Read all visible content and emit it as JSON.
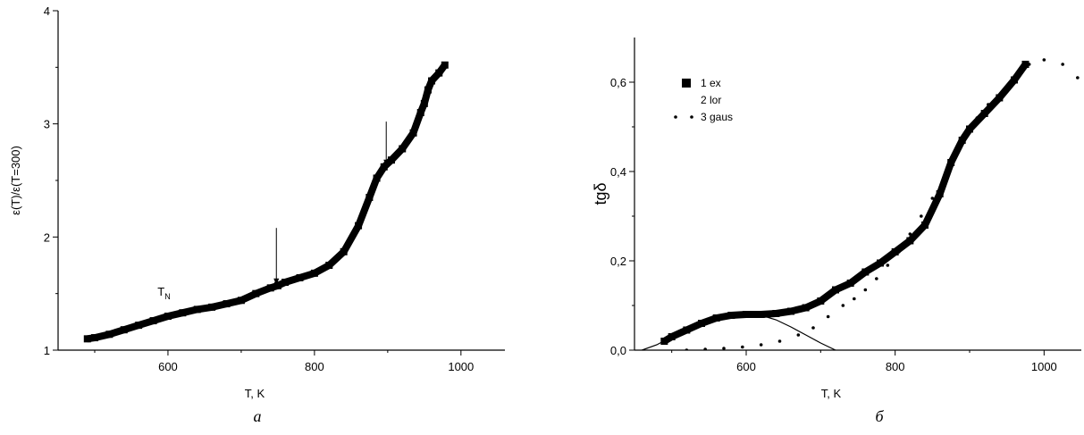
{
  "chart_data": [
    {
      "type": "scatter",
      "panel_label": "а",
      "xlabel": "T, K",
      "ylabel": "ε(T)/ε(T=300)",
      "xlim": [
        450,
        1060
      ],
      "ylim": [
        1,
        4
      ],
      "xticks": [
        600,
        800,
        1000
      ],
      "yticks": [
        1,
        2,
        3,
        4
      ],
      "x_tick_labels": [
        "600",
        "800",
        "1000"
      ],
      "y_tick_labels": [
        "1",
        "2",
        "3",
        "4"
      ],
      "series": [
        {
          "marker": "square-dense",
          "points": [
            [
              490,
              1.1
            ],
            [
              500,
              1.11
            ],
            [
              520,
              1.14
            ],
            [
              540,
              1.18
            ],
            [
              560,
              1.22
            ],
            [
              580,
              1.26
            ],
            [
              600,
              1.3
            ],
            [
              620,
              1.33
            ],
            [
              640,
              1.36
            ],
            [
              660,
              1.38
            ],
            [
              680,
              1.41
            ],
            [
              700,
              1.44
            ],
            [
              720,
              1.5
            ],
            [
              740,
              1.55
            ],
            [
              750,
              1.57
            ],
            [
              760,
              1.6
            ],
            [
              780,
              1.64
            ],
            [
              800,
              1.68
            ],
            [
              820,
              1.75
            ],
            [
              840,
              1.87
            ],
            [
              860,
              2.1
            ],
            [
              875,
              2.35
            ],
            [
              885,
              2.52
            ],
            [
              895,
              2.62
            ],
            [
              905,
              2.68
            ],
            [
              920,
              2.78
            ],
            [
              935,
              2.92
            ],
            [
              945,
              3.1
            ],
            [
              950,
              3.18
            ],
            [
              955,
              3.3
            ],
            [
              960,
              3.38
            ],
            [
              970,
              3.45
            ],
            [
              978,
              3.52
            ]
          ]
        }
      ],
      "annotations": [
        {
          "type": "arrow",
          "x": 748,
          "y_from": 2.08,
          "y_to": 1.57
        },
        {
          "type": "arrow",
          "x": 898,
          "y_from": 3.02,
          "y_to": 2.62
        },
        {
          "type": "text",
          "text": "T",
          "sub": "N",
          "x": 598,
          "y": 1.48
        }
      ]
    },
    {
      "type": "scatter",
      "panel_label": "б",
      "xlabel": "T, K",
      "ylabel": "tgδ",
      "xlim": [
        450,
        1050
      ],
      "ylim": [
        0,
        0.7
      ],
      "xticks": [
        600,
        800,
        1000
      ],
      "yticks": [
        0,
        0.2,
        0.4,
        0.6
      ],
      "x_tick_labels": [
        "600",
        "800",
        "1000"
      ],
      "y_tick_labels": [
        "0,0",
        "0,2",
        "0,4",
        "0,6"
      ],
      "legend": {
        "position": "top-left"
      },
      "series": [
        {
          "name": "1 ex",
          "marker": "square-dense",
          "points": [
            [
              490,
              0.02
            ],
            [
              500,
              0.03
            ],
            [
              520,
              0.045
            ],
            [
              540,
              0.06
            ],
            [
              560,
              0.072
            ],
            [
              580,
              0.078
            ],
            [
              600,
              0.08
            ],
            [
              620,
              0.08
            ],
            [
              640,
              0.082
            ],
            [
              660,
              0.087
            ],
            [
              680,
              0.095
            ],
            [
              700,
              0.11
            ],
            [
              720,
              0.135
            ],
            [
              740,
              0.15
            ],
            [
              760,
              0.175
            ],
            [
              780,
              0.195
            ],
            [
              800,
              0.22
            ],
            [
              820,
              0.245
            ],
            [
              840,
              0.28
            ],
            [
              860,
              0.35
            ],
            [
              875,
              0.42
            ],
            [
              890,
              0.47
            ],
            [
              900,
              0.495
            ],
            [
              920,
              0.53
            ],
            [
              940,
              0.565
            ],
            [
              960,
              0.605
            ],
            [
              975,
              0.64
            ]
          ]
        },
        {
          "name": "2 lor",
          "marker": "line",
          "points": [
            [
              460,
              0.0
            ],
            [
              480,
              0.012
            ],
            [
              500,
              0.03
            ],
            [
              520,
              0.048
            ],
            [
              540,
              0.063
            ],
            [
              560,
              0.074
            ],
            [
              580,
              0.079
            ],
            [
              600,
              0.081
            ],
            [
              620,
              0.078
            ],
            [
              640,
              0.068
            ],
            [
              660,
              0.052
            ],
            [
              680,
              0.034
            ],
            [
              700,
              0.016
            ],
            [
              720,
              0.0
            ]
          ]
        },
        {
          "name": "3 gaus",
          "marker": "dot",
          "points": [
            [
              520,
              0.0
            ],
            [
              545,
              0.002
            ],
            [
              570,
              0.004
            ],
            [
              595,
              0.007
            ],
            [
              620,
              0.012
            ],
            [
              645,
              0.02
            ],
            [
              670,
              0.034
            ],
            [
              690,
              0.05
            ],
            [
              710,
              0.075
            ],
            [
              730,
              0.1
            ],
            [
              745,
              0.115
            ],
            [
              760,
              0.135
            ],
            [
              775,
              0.16
            ],
            [
              790,
              0.19
            ],
            [
              805,
              0.22
            ],
            [
              820,
              0.26
            ],
            [
              835,
              0.3
            ],
            [
              850,
              0.34
            ],
            [
              865,
              0.38
            ],
            [
              880,
              0.43
            ],
            [
              895,
              0.48
            ],
            [
              910,
              0.52
            ],
            [
              925,
              0.55
            ],
            [
              945,
              0.58
            ],
            [
              965,
              0.62
            ],
            [
              980,
              0.64
            ],
            [
              1000,
              0.65
            ],
            [
              1025,
              0.64
            ],
            [
              1045,
              0.61
            ]
          ]
        }
      ]
    }
  ]
}
